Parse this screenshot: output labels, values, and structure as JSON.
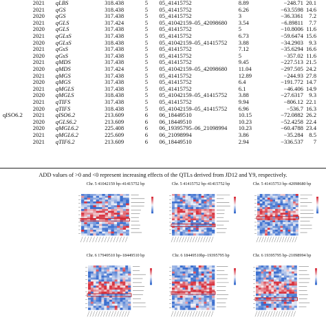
{
  "table": {
    "rows": [
      {
        "group": "",
        "year": "2021",
        "qtl": "qLBS",
        "pos": "318.438",
        "chr": "5",
        "interval": "05_41415752",
        "lod": "8.89",
        "add": "−248.71",
        "pve": "20.1"
      },
      {
        "group": "",
        "year": "2021",
        "qtl": "qGS",
        "pos": "318.438",
        "chr": "5",
        "interval": "05_41415752",
        "lod": "6.26",
        "add": "−63.5598",
        "pve": "14.6"
      },
      {
        "group": "",
        "year": "2020",
        "qtl": "qGS",
        "pos": "317.438",
        "chr": "5",
        "interval": "05_41415752",
        "lod": "3",
        "add": "−36.3361",
        "pve": "7.2"
      },
      {
        "group": "",
        "year": "2021",
        "qtl": "qGLS",
        "pos": "317.424",
        "chr": "5",
        "interval": "05_41042159–05_42098680",
        "lod": "3.54",
        "add": "−6.89811",
        "pve": "7.7"
      },
      {
        "group": "",
        "year": "2020",
        "qtl": "qGLS",
        "pos": "317.438",
        "chr": "5",
        "interval": "05_41415752",
        "lod": "5",
        "add": "−10.8006",
        "pve": "11.6"
      },
      {
        "group": "",
        "year": "2021",
        "qtl": "qGLsS",
        "pos": "317.438",
        "chr": "5",
        "interval": "05_41415752",
        "lod": "6.73",
        "add": "−59.6474",
        "pve": "15.6"
      },
      {
        "group": "",
        "year": "2020",
        "qtl": "qGLsS",
        "pos": "318.438",
        "chr": "5",
        "interval": "05_41042159–05_41415752",
        "lod": "3.88",
        "add": "−34.2903",
        "pve": "9.3"
      },
      {
        "group": "",
        "year": "2021",
        "qtl": "qGsS",
        "pos": "317.438",
        "chr": "5",
        "interval": "05_41415752",
        "lod": "7.12",
        "add": "−35.6294",
        "pve": "16.6"
      },
      {
        "group": "",
        "year": "2020",
        "qtl": "qGsS",
        "pos": "317.438",
        "chr": "5",
        "interval": "05_41415752",
        "lod": "5",
        "add": "−357.02",
        "pve": "11.6"
      },
      {
        "group": "",
        "year": "2021",
        "qtl": "qMDS",
        "pos": "317.438",
        "chr": "5",
        "interval": "05_41415752",
        "lod": "9.45",
        "add": "−227.513",
        "pve": "21.5"
      },
      {
        "group": "",
        "year": "2020",
        "qtl": "qMDS",
        "pos": "317.424",
        "chr": "5",
        "interval": "05_41042159–05_42098680",
        "lod": "11.04",
        "add": "−297.505",
        "pve": "24.2"
      },
      {
        "group": "",
        "year": "2021",
        "qtl": "qMGS",
        "pos": "317.438",
        "chr": "5",
        "interval": "05_41415752",
        "lod": "12.89",
        "add": "−244.93",
        "pve": "27.8"
      },
      {
        "group": "",
        "year": "2020",
        "qtl": "qMGS",
        "pos": "317.438",
        "chr": "5",
        "interval": "05_41415752",
        "lod": "6.4",
        "add": "−191.772",
        "pve": "14.7"
      },
      {
        "group": "",
        "year": "2021",
        "qtl": "qMGLS",
        "pos": "317.438",
        "chr": "5",
        "interval": "05_41415752",
        "lod": "6.1",
        "add": "−46.406",
        "pve": "14.9"
      },
      {
        "group": "",
        "year": "2020",
        "qtl": "qMGLS",
        "pos": "318.438",
        "chr": "5",
        "interval": "05_41042159–05_41415752",
        "lod": "3.88",
        "add": "−27.6317",
        "pve": "9.3"
      },
      {
        "group": "",
        "year": "2021",
        "qtl": "qTIFS",
        "pos": "317.438",
        "chr": "5",
        "interval": "05_41415752",
        "lod": "9.94",
        "add": "−806.12",
        "pve": "22.1"
      },
      {
        "group": "",
        "year": "2020",
        "qtl": "qTIFS",
        "pos": "318.438",
        "chr": "5",
        "interval": "05_41042159–05_41415752",
        "lod": "6.96",
        "add": "−536.7",
        "pve": "16.3"
      },
      {
        "group": "qISO6.2",
        "year": "2021",
        "qtl": "qISO6.2",
        "pos": "213.609",
        "chr": "6",
        "interval": "06_18449510",
        "lod": "10.15",
        "add": "−72.0882",
        "pve": "26.2"
      },
      {
        "group": "",
        "year": "2020",
        "qtl": "qGLS6.2",
        "pos": "213.609",
        "chr": "6",
        "interval": "06_18449510",
        "lod": "10.23",
        "add": "−52.4258",
        "pve": "22.4"
      },
      {
        "group": "",
        "year": "2020",
        "qtl": "qMGL6.2",
        "pos": "225.408",
        "chr": "6",
        "interval": "06_19395795–06_21098994",
        "lod": "10.23",
        "add": "−60.4788",
        "pve": "23.4"
      },
      {
        "group": "",
        "year": "2021",
        "qtl": "qMGL6.2",
        "pos": "225.609",
        "chr": "6",
        "interval": "06_21098994",
        "lod": "3.86",
        "add": "−35.284",
        "pve": "8.5"
      },
      {
        "group": "",
        "year": "2021",
        "qtl": "qTIF6.2",
        "pos": "213.609",
        "chr": "6",
        "interval": "06_18449510",
        "lod": "2.94",
        "add": "−336.537",
        "pve": "7"
      }
    ],
    "footnote": "ADD values of >0 and <0 represent increasing effects of the QTLs derived from JD12 and Y9, respectively."
  },
  "figure": {
    "panels": [
      {
        "title": "Chr. 5 41042159 bp–41415752 bp",
        "seed": 3
      },
      {
        "title": "Chr. 5 41415752 bp–41415752 bp",
        "seed": 7
      },
      {
        "title": "Chr. 5 41415753 bp–42098680 bp",
        "seed": 11
      },
      {
        "title": "Chr. 6 17949510 bp–18449510 bp",
        "seed": 5
      },
      {
        "title": "Chr. 6 18449510bp–19395795 bp",
        "seed": 13
      },
      {
        "title": "Chr. 6 19395795 bp–21098994 bp",
        "seed": 17
      }
    ],
    "colors": {
      "blue": "#3b6fcf",
      "white": "#f4f4f8",
      "red": "#d9333f"
    }
  }
}
